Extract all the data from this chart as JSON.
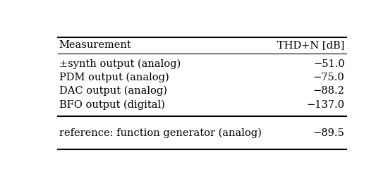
{
  "col_headers": [
    "Measurement",
    "THD+N [dB]"
  ],
  "main_rows": [
    [
      "±synth output (analog)",
      "−51.0"
    ],
    [
      "PDM output (analog)",
      "−75.0"
    ],
    [
      "DAC output (analog)",
      "−88.2"
    ],
    [
      "BFO output (digital)",
      "−137.0"
    ]
  ],
  "ref_row": [
    "reference: function generator (analog)",
    "−89.5"
  ],
  "bg_color": "#ffffff",
  "text_color": "#000000",
  "fontsize": 10.5,
  "line_color": "#000000",
  "thick_lw": 1.5,
  "thin_lw": 0.8
}
